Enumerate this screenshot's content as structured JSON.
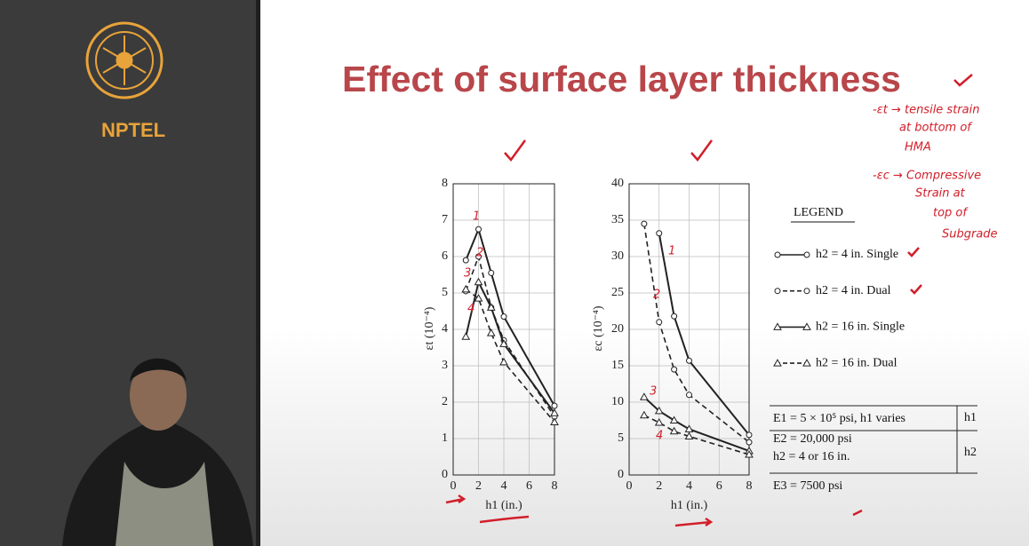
{
  "chart_data": [
    {
      "type": "line",
      "ylabel": "εt (10⁻⁴)",
      "xlabel": "h1 (in.)",
      "xlim": [
        0,
        8
      ],
      "xticks": [
        0,
        2,
        4,
        6,
        8
      ],
      "ylim": [
        0,
        8
      ],
      "yticks": [
        0,
        1,
        2,
        3,
        4,
        5,
        6,
        7,
        8
      ],
      "grid": true,
      "series": [
        {
          "name": "h2 = 4 in. Single",
          "color": "#222222",
          "dash": false,
          "marker": "circle",
          "x": [
            1,
            2,
            3,
            4,
            8
          ],
          "values": [
            5.9,
            6.75,
            5.55,
            4.35,
            1.9
          ]
        },
        {
          "name": "h2 = 4 in. Dual",
          "color": "#222222",
          "dash": true,
          "marker": "circle",
          "x": [
            1,
            2,
            3,
            4,
            8
          ],
          "values": [
            5.05,
            6.0,
            4.6,
            3.7,
            1.6
          ]
        },
        {
          "name": "h2 = 16 in. Single",
          "color": "#222222",
          "dash": false,
          "marker": "triangle",
          "x": [
            1,
            2,
            3,
            4,
            8
          ],
          "values": [
            3.8,
            5.3,
            4.6,
            3.6,
            1.7
          ]
        },
        {
          "name": "h2 = 16 in. Dual",
          "color": "#222222",
          "dash": true,
          "marker": "triangle",
          "x": [
            1,
            2,
            3,
            4,
            8
          ],
          "values": [
            5.1,
            4.85,
            3.9,
            3.1,
            1.45
          ]
        }
      ]
    },
    {
      "type": "line",
      "ylabel": "εc (10⁻⁴)",
      "xlabel": "h1 (in.)",
      "xlim": [
        0,
        8
      ],
      "xticks": [
        0,
        2,
        4,
        6,
        8
      ],
      "ylim": [
        0,
        40
      ],
      "yticks": [
        0,
        5,
        10,
        15,
        20,
        25,
        30,
        35,
        40
      ],
      "grid": true,
      "series": [
        {
          "color": "#222222",
          "dash": false,
          "marker": "circle",
          "x": [
            2,
            3,
            4,
            8
          ],
          "values": [
            33.2,
            21.8,
            15.7,
            5.5
          ]
        },
        {
          "color": "#222222",
          "dash": true,
          "marker": "circle",
          "x": [
            1,
            2,
            3,
            4,
            8
          ],
          "values": [
            34.5,
            21,
            14.5,
            11,
            4.5
          ]
        },
        {
          "color": "#222222",
          "dash": false,
          "marker": "triangle",
          "x": [
            1,
            2,
            3,
            4,
            8
          ],
          "values": [
            10.7,
            8.8,
            7.5,
            6.3,
            3.3
          ]
        },
        {
          "color": "#222222",
          "dash": true,
          "marker": "triangle",
          "x": [
            1,
            2,
            3,
            4,
            8
          ],
          "values": [
            8.2,
            7.2,
            6,
            5.3,
            2.8
          ]
        }
      ]
    }
  ],
  "slide": {
    "logo_text": "NPTEL",
    "title": "Effect of surface layer thickness",
    "legend_title": "LEGEND",
    "layers": [
      "E1 = 5 × 10⁵ psi, h1 varies",
      "E2 = 20,000 psi",
      "h2 = 4 or 16 in.",
      "E3 = 7500 psi"
    ],
    "layer_thickness": [
      "h1",
      "h2"
    ],
    "notes": [
      "-εt → tensile strain",
      "at bottom of",
      "HMA",
      "-εc → Compressive",
      "Strain at",
      "top of",
      "Subgrade"
    ],
    "curve_marks": [
      "1",
      "2",
      "3",
      "4",
      "1",
      "2",
      "3",
      "4"
    ]
  }
}
